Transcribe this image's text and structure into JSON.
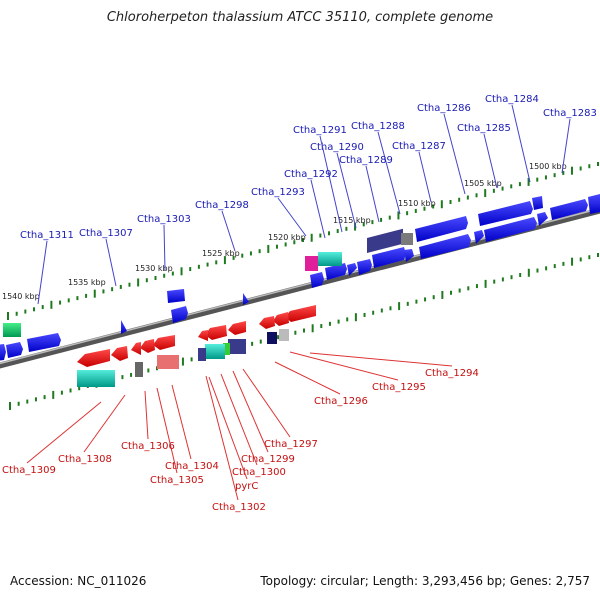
{
  "title": "Chloroherpeton thalassium ATCC 35110, complete genome",
  "footer": {
    "accession": "Accession: NC_011026",
    "summary": "Topology: circular; Length: 3,293,456 bp; Genes: 2,757"
  },
  "colors": {
    "backbone": "#808080",
    "forward_gene": "#0000e6",
    "reverse_gene": "#e60000",
    "forward_label": "#1a1ab4",
    "reverse_label": "#c41010",
    "tick": "#1f7a1f"
  },
  "scale_labels": [
    "1500 kbp",
    "1505 kbp",
    "1510 kbp",
    "1515 kbp",
    "1520 kbp",
    "1525 kbp",
    "1530 kbp",
    "1535 kbp",
    "1540 kbp"
  ],
  "forward_genes": [
    "Ctha_1283",
    "Ctha_1284",
    "Ctha_1285",
    "Ctha_1286",
    "Ctha_1287",
    "Ctha_1288",
    "Ctha_1289",
    "Ctha_1290",
    "Ctha_1291",
    "Ctha_1292",
    "Ctha_1293",
    "Ctha_1298",
    "Ctha_1303",
    "Ctha_1307",
    "Ctha_1311"
  ],
  "reverse_genes": [
    "Ctha_1294",
    "Ctha_1295",
    "Ctha_1296",
    "Ctha_1297",
    "Ctha_1299",
    "Ctha_1300",
    "pyrC",
    "Ctha_1302",
    "Ctha_1304",
    "Ctha_1305",
    "Ctha_1306",
    "Ctha_1308",
    "Ctha_1309"
  ]
}
